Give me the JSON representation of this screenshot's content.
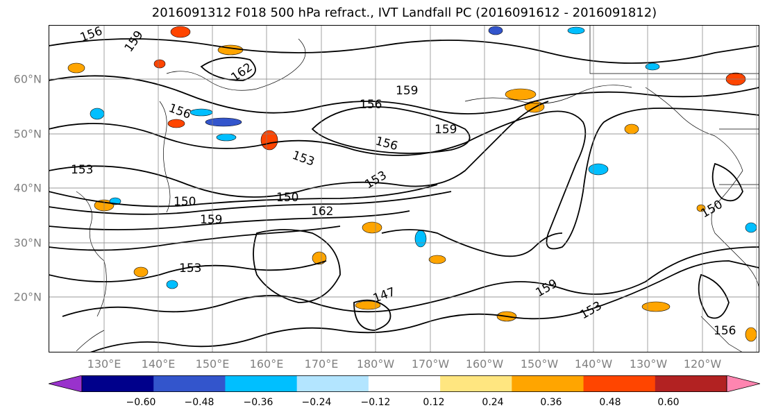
{
  "title": "2016091312 F018 500 hPa refract., IVT Landfall PC (2016091612 - 2016091812)",
  "lat_labels": [
    "60°N",
    "50°N",
    "40°N",
    "30°N",
    "20°N"
  ],
  "lon_labels": [
    "130°E",
    "140°E",
    "150°E",
    "160°E",
    "170°E",
    "180°W",
    "170°W",
    "160°W",
    "150°W",
    "140°W",
    "130°W",
    "120°W"
  ],
  "contour_labels": [
    "156",
    "159",
    "162",
    "156",
    "159",
    "156",
    "159",
    "156",
    "153",
    "150",
    "153",
    "150",
    "159",
    "162",
    "153",
    "147",
    "159",
    "153",
    "150",
    "156",
    "153"
  ],
  "colorbar": {
    "colors": [
      "#9932cc",
      "#00008b",
      "#3355cc",
      "#00bfff",
      "#b3e5ff",
      "#ffffff",
      "#ffe680",
      "#ffa500",
      "#ff4500",
      "#b22222",
      "#ff85b0"
    ],
    "tick_labels": [
      "−0.60",
      "−0.48",
      "−0.36",
      "−0.24",
      "−0.12",
      "0.12",
      "0.24",
      "0.36",
      "0.48",
      "0.60"
    ]
  }
}
